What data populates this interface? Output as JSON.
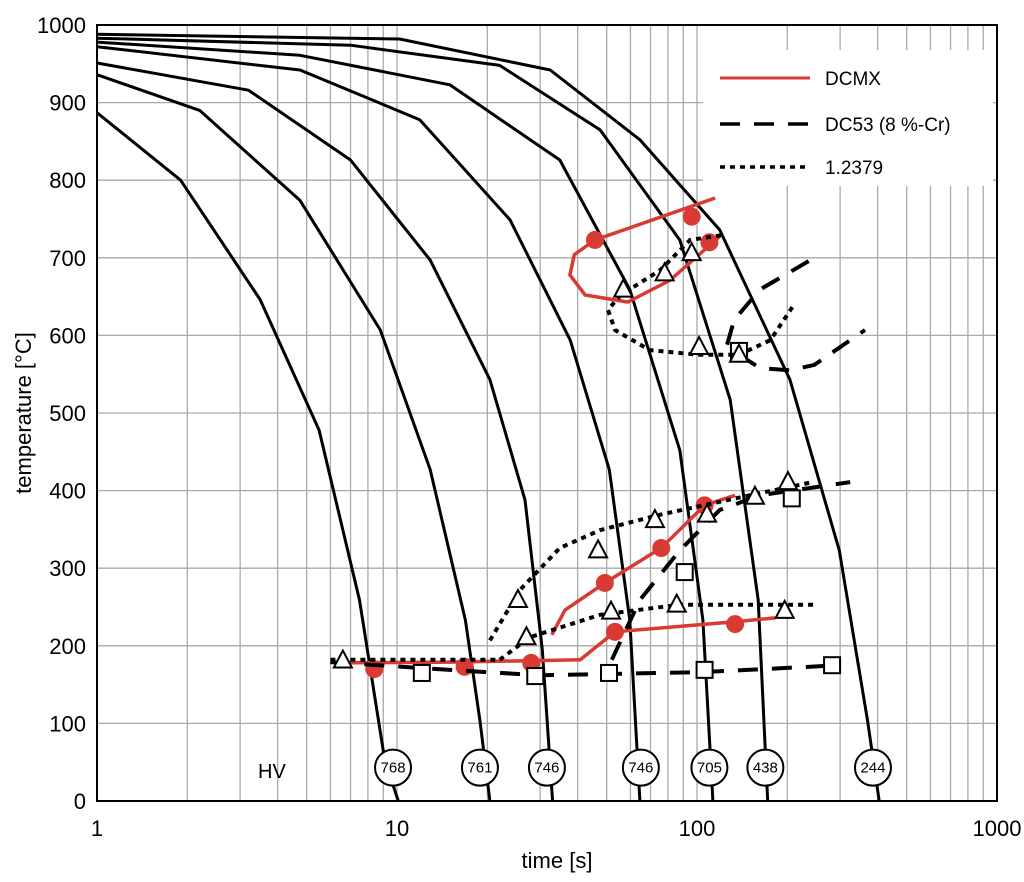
{
  "chart_data": {
    "type": "line",
    "xlabel": "time [s]",
    "ylabel": "temperature [°C]",
    "xscale": "log",
    "xlim": [
      1,
      1000
    ],
    "ylim": [
      0,
      1000
    ],
    "xticks": [
      "1",
      "10",
      "100",
      "1000"
    ],
    "xtick_values": [
      1,
      10,
      100,
      1000
    ],
    "yticks": [
      "0",
      "100",
      "200",
      "300",
      "400",
      "500",
      "600",
      "700",
      "800",
      "900",
      "1000"
    ],
    "ytick_values": [
      0,
      100,
      200,
      300,
      400,
      500,
      600,
      700,
      800,
      900,
      1000
    ],
    "grid": true,
    "legend_placement": "top-right",
    "legend": [
      {
        "name": "DCMX",
        "style": "solid",
        "color": "#d93a34"
      },
      {
        "name": "DC53 (8 %-Cr)",
        "style": "dashed",
        "color": "#000000"
      },
      {
        "name": "1.2379",
        "style": "dotted",
        "color": "#000000"
      }
    ],
    "hv_label": "HV",
    "cooling_curves": [
      {
        "hv": "768",
        "points": [
          [
            1,
            887
          ],
          [
            1.9,
            800
          ],
          [
            3.5,
            646
          ],
          [
            5.5,
            478
          ],
          [
            7.5,
            259
          ],
          [
            9.1,
            53
          ],
          [
            10.1,
            0
          ]
        ]
      },
      {
        "hv": "761",
        "points": [
          [
            1,
            936
          ],
          [
            2.2,
            890
          ],
          [
            4.75,
            774
          ],
          [
            8.8,
            607
          ],
          [
            12.9,
            427
          ],
          [
            16.9,
            233
          ],
          [
            18.9,
            104
          ],
          [
            20.4,
            0
          ]
        ]
      },
      {
        "hv": "746",
        "points": [
          [
            1,
            951
          ],
          [
            3.2,
            916
          ],
          [
            7.0,
            826
          ],
          [
            12.9,
            697
          ],
          [
            20.4,
            543
          ],
          [
            26.7,
            388
          ],
          [
            30.5,
            195
          ],
          [
            33,
            0
          ]
        ]
      },
      {
        "hv": "746",
        "points": [
          [
            1,
            972
          ],
          [
            4.75,
            942
          ],
          [
            11.9,
            878
          ],
          [
            23.8,
            749
          ],
          [
            37.8,
            594
          ],
          [
            51,
            427
          ],
          [
            59.7,
            233
          ],
          [
            64.5,
            0
          ]
        ]
      },
      {
        "hv": "705",
        "points": [
          [
            1,
            978
          ],
          [
            4.75,
            961
          ],
          [
            15,
            923
          ],
          [
            34.9,
            826
          ],
          [
            59.7,
            659
          ],
          [
            87.6,
            452
          ],
          [
            104.6,
            233
          ],
          [
            113,
            0
          ]
        ]
      },
      {
        "hv": "438",
        "points": [
          [
            1,
            983
          ],
          [
            7,
            974
          ],
          [
            22,
            948
          ],
          [
            47.5,
            865
          ],
          [
            87.6,
            723
          ],
          [
            129,
            517
          ],
          [
            160,
            259
          ],
          [
            172,
            0
          ]
        ]
      },
      {
        "hv": "244",
        "points": [
          [
            1,
            988
          ],
          [
            10.2,
            982
          ],
          [
            32.4,
            942
          ],
          [
            64.5,
            852
          ],
          [
            119,
            736
          ],
          [
            204,
            543
          ],
          [
            298,
            323
          ],
          [
            370,
            104
          ],
          [
            405,
            0
          ]
        ]
      }
    ],
    "hv_positions": [
      [
        9.7,
        43
      ],
      [
        18.9,
        43
      ],
      [
        31.6,
        43
      ],
      [
        65,
        43
      ],
      [
        110,
        43
      ],
      [
        169,
        43
      ],
      [
        386,
        43
      ]
    ],
    "series": [
      {
        "name": "DCMX",
        "style": "solid",
        "color": "#d93a34",
        "lines": [
          [
            [
              115,
              777
            ],
            [
              45.7,
              723
            ],
            [
              39,
              704
            ],
            [
              37.7,
              678
            ],
            [
              42.4,
              652
            ],
            [
              58.8,
              643
            ],
            [
              81.3,
              671
            ],
            [
              120,
              729
            ]
          ],
          [
            [
              134,
              394
            ],
            [
              106,
              381
            ],
            [
              76,
              326
            ],
            [
              49.3,
              281
            ],
            [
              36.3,
              246
            ],
            [
              32.8,
              214
            ]
          ],
          [
            [
              6.2,
              178
            ],
            [
              15,
              179
            ],
            [
              40.8,
              182
            ],
            [
              53.3,
              218
            ],
            [
              134,
              231
            ],
            [
              182,
              236
            ]
          ]
        ],
        "markers": "circle",
        "marker_points": [
          [
            45.7,
            723
          ],
          [
            96,
            753
          ],
          [
            110,
            720
          ],
          [
            106,
            381
          ],
          [
            76,
            326
          ],
          [
            49.3,
            281
          ],
          [
            8.4,
            170
          ],
          [
            16.8,
            173
          ],
          [
            28,
            178
          ],
          [
            53.3,
            218
          ],
          [
            134,
            228
          ]
        ]
      },
      {
        "name": "DC53 (8 %-Cr)",
        "style": "dashed",
        "color": "#000000",
        "lines": [
          [
            [
              126,
              588
            ],
            [
              133,
              620
            ],
            [
              162,
              659
            ],
            [
              246,
              700
            ]
          ],
          [
            [
              138,
              575
            ],
            [
              162,
              558
            ],
            [
              204,
              555
            ],
            [
              246,
              562
            ],
            [
              363,
              607
            ]
          ],
          [
            [
              52,
              182
            ],
            [
              64.5,
              259
            ],
            [
              87.6,
              323
            ],
            [
              119,
              375
            ],
            [
              162,
              394
            ],
            [
              324,
              411
            ]
          ],
          [
            [
              6,
              179
            ],
            [
              15,
              169
            ],
            [
              30,
              162
            ],
            [
              102,
              166
            ],
            [
              189,
              171
            ],
            [
              298,
              175
            ]
          ]
        ],
        "markers": "square",
        "marker_points": [
          [
            138,
            580
          ],
          [
            91,
            295
          ],
          [
            207,
            390
          ],
          [
            12.1,
            165
          ],
          [
            28.9,
            161
          ],
          [
            50.9,
            165
          ],
          [
            106,
            169
          ],
          [
            282,
            175
          ]
        ]
      },
      {
        "name": "1.2379",
        "style": "dotted",
        "color": "#000000",
        "lines": [
          [
            [
              120,
              729
            ],
            [
              94.8,
              723
            ],
            [
              75.4,
              684
            ],
            [
              55.7,
              652
            ],
            [
              50.5,
              633
            ],
            [
              53.3,
              607
            ],
            [
              69.5,
              581
            ],
            [
              101.6,
              575
            ],
            [
              138,
              575
            ],
            [
              175.6,
              594
            ],
            [
              210,
              639
            ]
          ],
          [
            [
              20.4,
              207
            ],
            [
              25.7,
              272
            ],
            [
              34.9,
              326
            ],
            [
              47.5,
              349
            ],
            [
              75.4,
              369
            ],
            [
              150,
              394
            ],
            [
              237,
              410
            ]
          ],
          [
            [
              22,
              182
            ],
            [
              27.7,
              211
            ],
            [
              47.5,
              240
            ],
            [
              87.6,
              253
            ],
            [
              150,
              253
            ],
            [
              246,
              253
            ]
          ],
          [
            [
              6,
              182
            ],
            [
              22,
              182
            ]
          ]
        ],
        "markers": "triangle",
        "marker_points": [
          [
            56.8,
            659
          ],
          [
            78,
            680
          ],
          [
            96,
            706
          ],
          [
            101.6,
            585
          ],
          [
            138,
            575
          ],
          [
            25.3,
            259
          ],
          [
            46.8,
            323
          ],
          [
            72.4,
            362
          ],
          [
            108,
            369
          ],
          [
            156,
            392
          ],
          [
            201,
            411
          ],
          [
            27,
            211
          ],
          [
            51.7,
            244
          ],
          [
            85.6,
            253
          ],
          [
            196,
            245
          ],
          [
            6.6,
            181
          ]
        ]
      }
    ]
  }
}
